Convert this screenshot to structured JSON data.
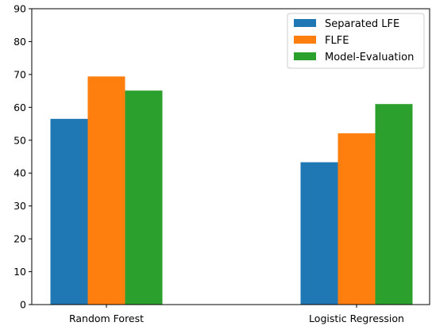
{
  "chart_data": {
    "type": "bar",
    "categories": [
      "Random Forest",
      "Logistic Regression"
    ],
    "series": [
      {
        "name": "Separated LFE",
        "color": "#1f77b4",
        "values": [
          56.5,
          43.3
        ]
      },
      {
        "name": "FLFE",
        "color": "#ff7f0e",
        "values": [
          69.4,
          52.1
        ]
      },
      {
        "name": "Model-Evaluation",
        "color": "#2ca02c",
        "values": [
          65.1,
          61.0
        ]
      }
    ],
    "ylim": [
      0,
      90
    ],
    "yticks": [
      0,
      10,
      20,
      30,
      40,
      50,
      60,
      70,
      80,
      90
    ],
    "grid": false,
    "legend_position": "top-right"
  }
}
